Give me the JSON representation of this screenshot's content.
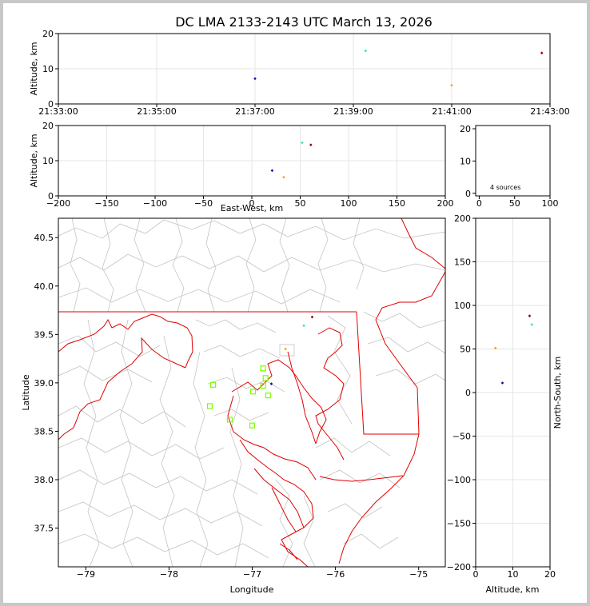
{
  "title": "DC LMA 2133-2143 UTC March 13, 2026",
  "colors": {
    "state_border": "#e00000",
    "county_border": "#c4c4c4",
    "station": "#7cfc00",
    "grid": "#e6e6e6"
  },
  "chart_data": [
    {
      "id": "time_height",
      "type": "scatter",
      "ylabel": "Altitude, km",
      "xlim": [
        "21:33:00",
        "21:43:00"
      ],
      "ylim": [
        0,
        20
      ],
      "xticks": [
        "21:33:00",
        "21:35:00",
        "21:37:00",
        "21:39:00",
        "21:41:00",
        "21:43:00"
      ],
      "yticks": [
        "0",
        "10",
        "20"
      ],
      "points": [
        {
          "t": "21:37:00",
          "alt": 7.2,
          "color": "#1f00a8"
        },
        {
          "t": "21:39:15",
          "alt": 15.1,
          "color": "#40e0c0"
        },
        {
          "t": "21:41:00",
          "alt": 5.3,
          "color": "#ffa500"
        },
        {
          "t": "21:42:50",
          "alt": 14.5,
          "color": "#8b0000"
        }
      ]
    },
    {
      "id": "ew_height",
      "type": "scatter",
      "xlabel": "East-West, km",
      "ylabel": "Altitude, km",
      "xlim": [
        -200,
        200
      ],
      "ylim": [
        0,
        20
      ],
      "xticks": [
        "−200",
        "−150",
        "−100",
        "−50",
        "0",
        "50",
        "100",
        "150",
        "200"
      ],
      "yticks": [
        "0",
        "10",
        "20"
      ],
      "points": [
        {
          "x": 21,
          "alt": 7.2,
          "color": "#1f00a8"
        },
        {
          "x": 52,
          "alt": 15.1,
          "color": "#40e0c0"
        },
        {
          "x": 33,
          "alt": 5.3,
          "color": "#ffa500"
        },
        {
          "x": 61,
          "alt": 14.5,
          "color": "#8b0000"
        }
      ]
    },
    {
      "id": "histogram",
      "type": "bar",
      "xlim": [
        0,
        100
      ],
      "ylim": [
        0,
        20
      ],
      "xticks": [
        "0",
        "50",
        "100"
      ],
      "yticks": [
        "0",
        "10",
        "20"
      ],
      "annotation": "4 sources"
    },
    {
      "id": "plan_view",
      "type": "scatter",
      "xlabel": "Longitude",
      "ylabel": "Latitude",
      "xlim": [
        -79.33,
        -74.68
      ],
      "ylim": [
        37.1,
        40.7
      ],
      "xticks": [
        "−79",
        "−78",
        "−77",
        "−76",
        "−75"
      ],
      "yticks": [
        "37.5",
        "38.0",
        "38.5",
        "39.0",
        "39.5",
        "40.0",
        "40.5"
      ],
      "points": [
        {
          "lon": -76.77,
          "lat": 38.99,
          "color": "#1f00a8"
        },
        {
          "lon": -76.38,
          "lat": 39.59,
          "color": "#40e0c0"
        },
        {
          "lon": -76.6,
          "lat": 39.35,
          "color": "#ffa500"
        },
        {
          "lon": -76.28,
          "lat": 39.68,
          "color": "#8b0000"
        }
      ],
      "stations": [
        {
          "lon": -77.47,
          "lat": 38.98
        },
        {
          "lon": -77.51,
          "lat": 38.76
        },
        {
          "lon": -77.27,
          "lat": 38.62
        },
        {
          "lon": -77.0,
          "lat": 38.56
        },
        {
          "lon": -76.99,
          "lat": 38.91
        },
        {
          "lon": -76.87,
          "lat": 38.97
        },
        {
          "lon": -76.81,
          "lat": 38.87
        },
        {
          "lon": -76.84,
          "lat": 39.05
        },
        {
          "lon": -76.87,
          "lat": 39.15
        }
      ]
    },
    {
      "id": "ns_height",
      "type": "scatter",
      "xlabel": "Altitude, km",
      "ylabel": "North-South, km",
      "xlim": [
        0,
        20
      ],
      "ylim": [
        -200,
        200
      ],
      "xticks": [
        "0",
        "10",
        "20"
      ],
      "yticks": [
        "−200",
        "−150",
        "−100",
        "−50",
        "0",
        "50",
        "100",
        "150",
        "200"
      ],
      "points": [
        {
          "alt": 7.2,
          "y": 11,
          "color": "#1f00a8"
        },
        {
          "alt": 15.1,
          "y": 78,
          "color": "#40e0c0"
        },
        {
          "alt": 5.3,
          "y": 51,
          "color": "#ffa500"
        },
        {
          "alt": 14.5,
          "y": 88,
          "color": "#8b0000"
        }
      ]
    }
  ]
}
